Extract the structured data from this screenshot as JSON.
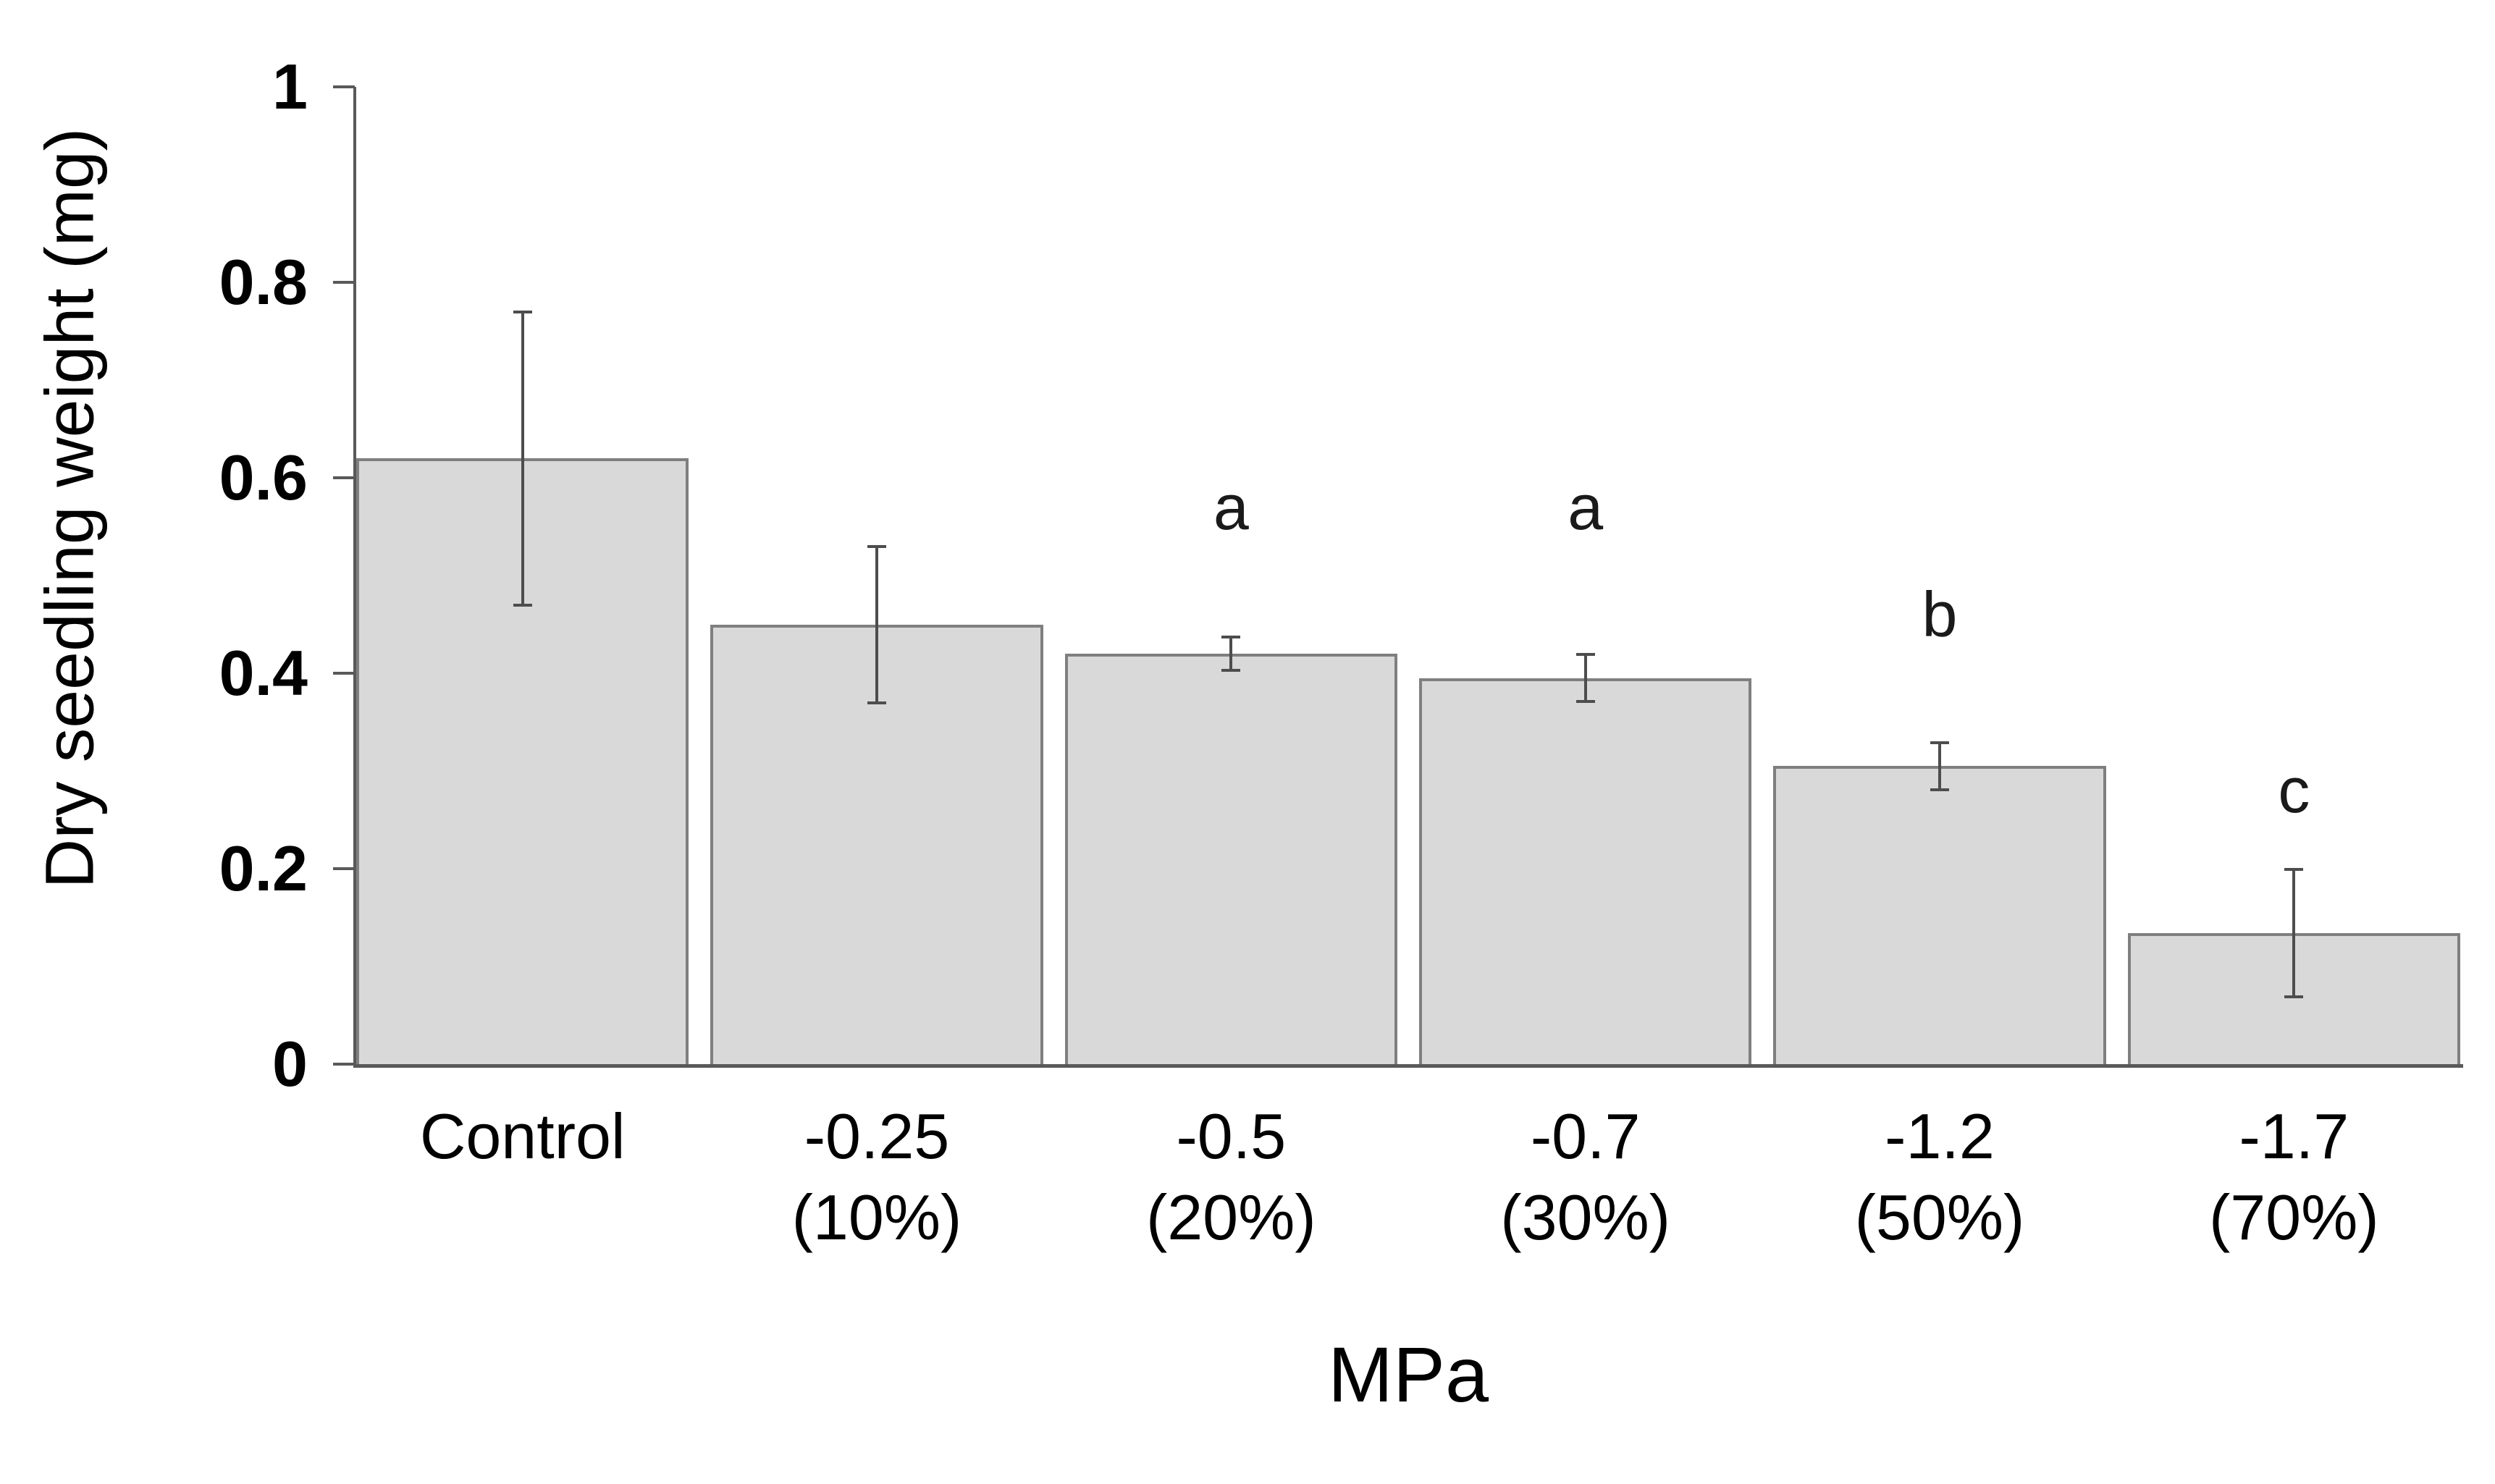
{
  "chart_data": {
    "type": "bar",
    "title": "",
    "ylabel": "Dry seedling weight (mg)",
    "xlabel": "MPa",
    "ylim": [
      0,
      1
    ],
    "grid": false,
    "legend": false,
    "y_ticks": [
      {
        "value": 1,
        "label": "1"
      },
      {
        "value": 0.8,
        "label": "0.8"
      },
      {
        "value": 0.6,
        "label": "0.6"
      },
      {
        "value": 0.4,
        "label": "0.4"
      },
      {
        "value": 0.2,
        "label": "0.2"
      },
      {
        "value": 0,
        "label": "0"
      }
    ],
    "bar_fill": "#d9d9d9",
    "bar_border": "#7f7f7f",
    "error_color": "#4d4d4d",
    "axis_color": "#595959",
    "bars": [
      {
        "category": "Control",
        "subcategory": "",
        "value": 0.62,
        "error": 0.15,
        "letter": "",
        "letter_y": null
      },
      {
        "category": "-0.25",
        "subcategory": "(10%)",
        "value": 0.45,
        "error": 0.08,
        "letter": "",
        "letter_y": null
      },
      {
        "category": "-0.5",
        "subcategory": "(20%)",
        "value": 0.42,
        "error": 0.017,
        "letter": "a",
        "letter_y": 0.57
      },
      {
        "category": "-0.7",
        "subcategory": "(30%)",
        "value": 0.395,
        "error": 0.024,
        "letter": "a",
        "letter_y": 0.57
      },
      {
        "category": "-1.2",
        "subcategory": "(50%)",
        "value": 0.305,
        "error": 0.024,
        "letter": "b",
        "letter_y": 0.46
      },
      {
        "category": "-1.7",
        "subcategory": "(70%)",
        "value": 0.134,
        "error": 0.065,
        "letter": "c",
        "letter_y": 0.28
      }
    ]
  }
}
